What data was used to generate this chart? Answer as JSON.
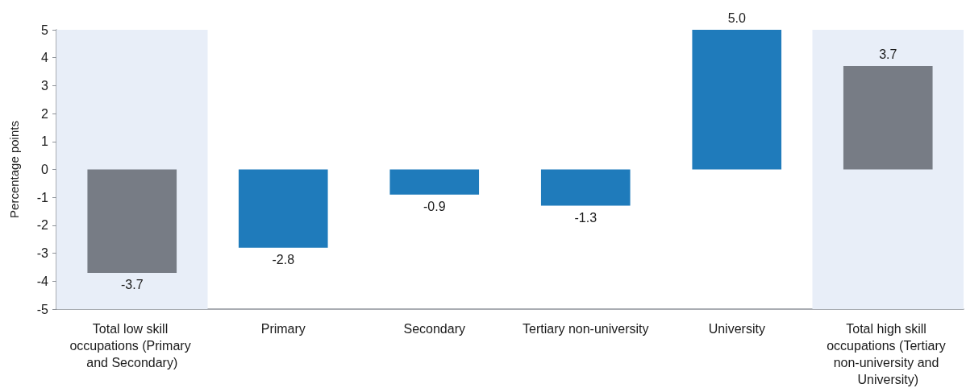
{
  "chart_data": {
    "type": "bar",
    "ylabel": "Percentage points",
    "categories": [
      "Total low skill occupations (Primary and Secondary)",
      "Primary",
      "Secondary",
      "Tertiary non-university",
      "University",
      "Total high skill occupations (Tertiary non-university and University)"
    ],
    "values": [
      -3.7,
      -2.8,
      -0.9,
      -1.3,
      5.0,
      3.7
    ],
    "value_labels": [
      "-3.7",
      "-2.8",
      "-0.9",
      "-1.3",
      "5.0",
      "3.7"
    ],
    "colors": [
      "#777c85",
      "#1f7bbb",
      "#1f7bbb",
      "#1f7bbb",
      "#1f7bbb",
      "#777c85"
    ],
    "ylim": [
      -5,
      5
    ],
    "yticks": [
      -5,
      -4,
      -3,
      -2,
      -1,
      0,
      1,
      2,
      3,
      4,
      5
    ],
    "grid": false,
    "bands": [
      {
        "axis": "x",
        "from": "Total low skill occupations (Primary and Secondary)",
        "to": "Total low skill occupations (Primary and Secondary)",
        "color": "#e8eef8"
      },
      {
        "axis": "x",
        "from": "Total high skill occupations (Tertiary non-university and University)",
        "to": "Total high skill occupations (Tertiary non-university and University)",
        "color": "#e8eef8"
      }
    ]
  }
}
